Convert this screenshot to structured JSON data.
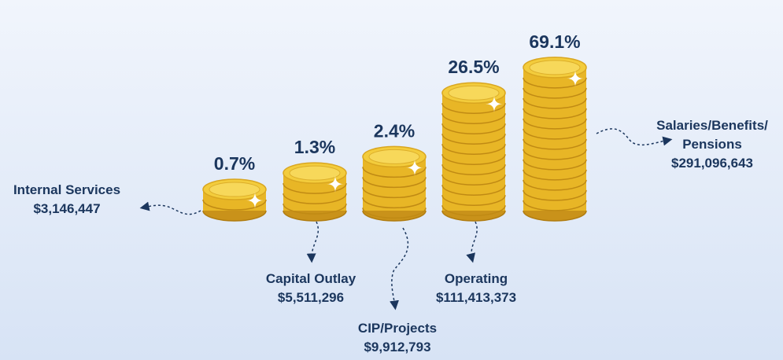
{
  "chart_data": {
    "type": "coins",
    "yscale": "log",
    "categories": [
      "Internal Services",
      "Capital Outlay",
      "CIP/Projects",
      "Operating",
      "Salaries/Benefits/Pensions"
    ],
    "values": [
      0.7,
      1.3,
      2.4,
      26.5,
      69.1
    ],
    "value_labels": [
      "0.7%",
      "1.3%",
      "2.4%",
      "26.5%",
      "69.1%"
    ],
    "amounts": [
      3146447,
      5511296,
      9912793,
      111413373,
      291096643
    ],
    "amount_labels": [
      "$3,146,447",
      "$5,511,296",
      "$9,912,793",
      "$111,413,373",
      "$291,096,643"
    ],
    "color": "#e8b626"
  }
}
